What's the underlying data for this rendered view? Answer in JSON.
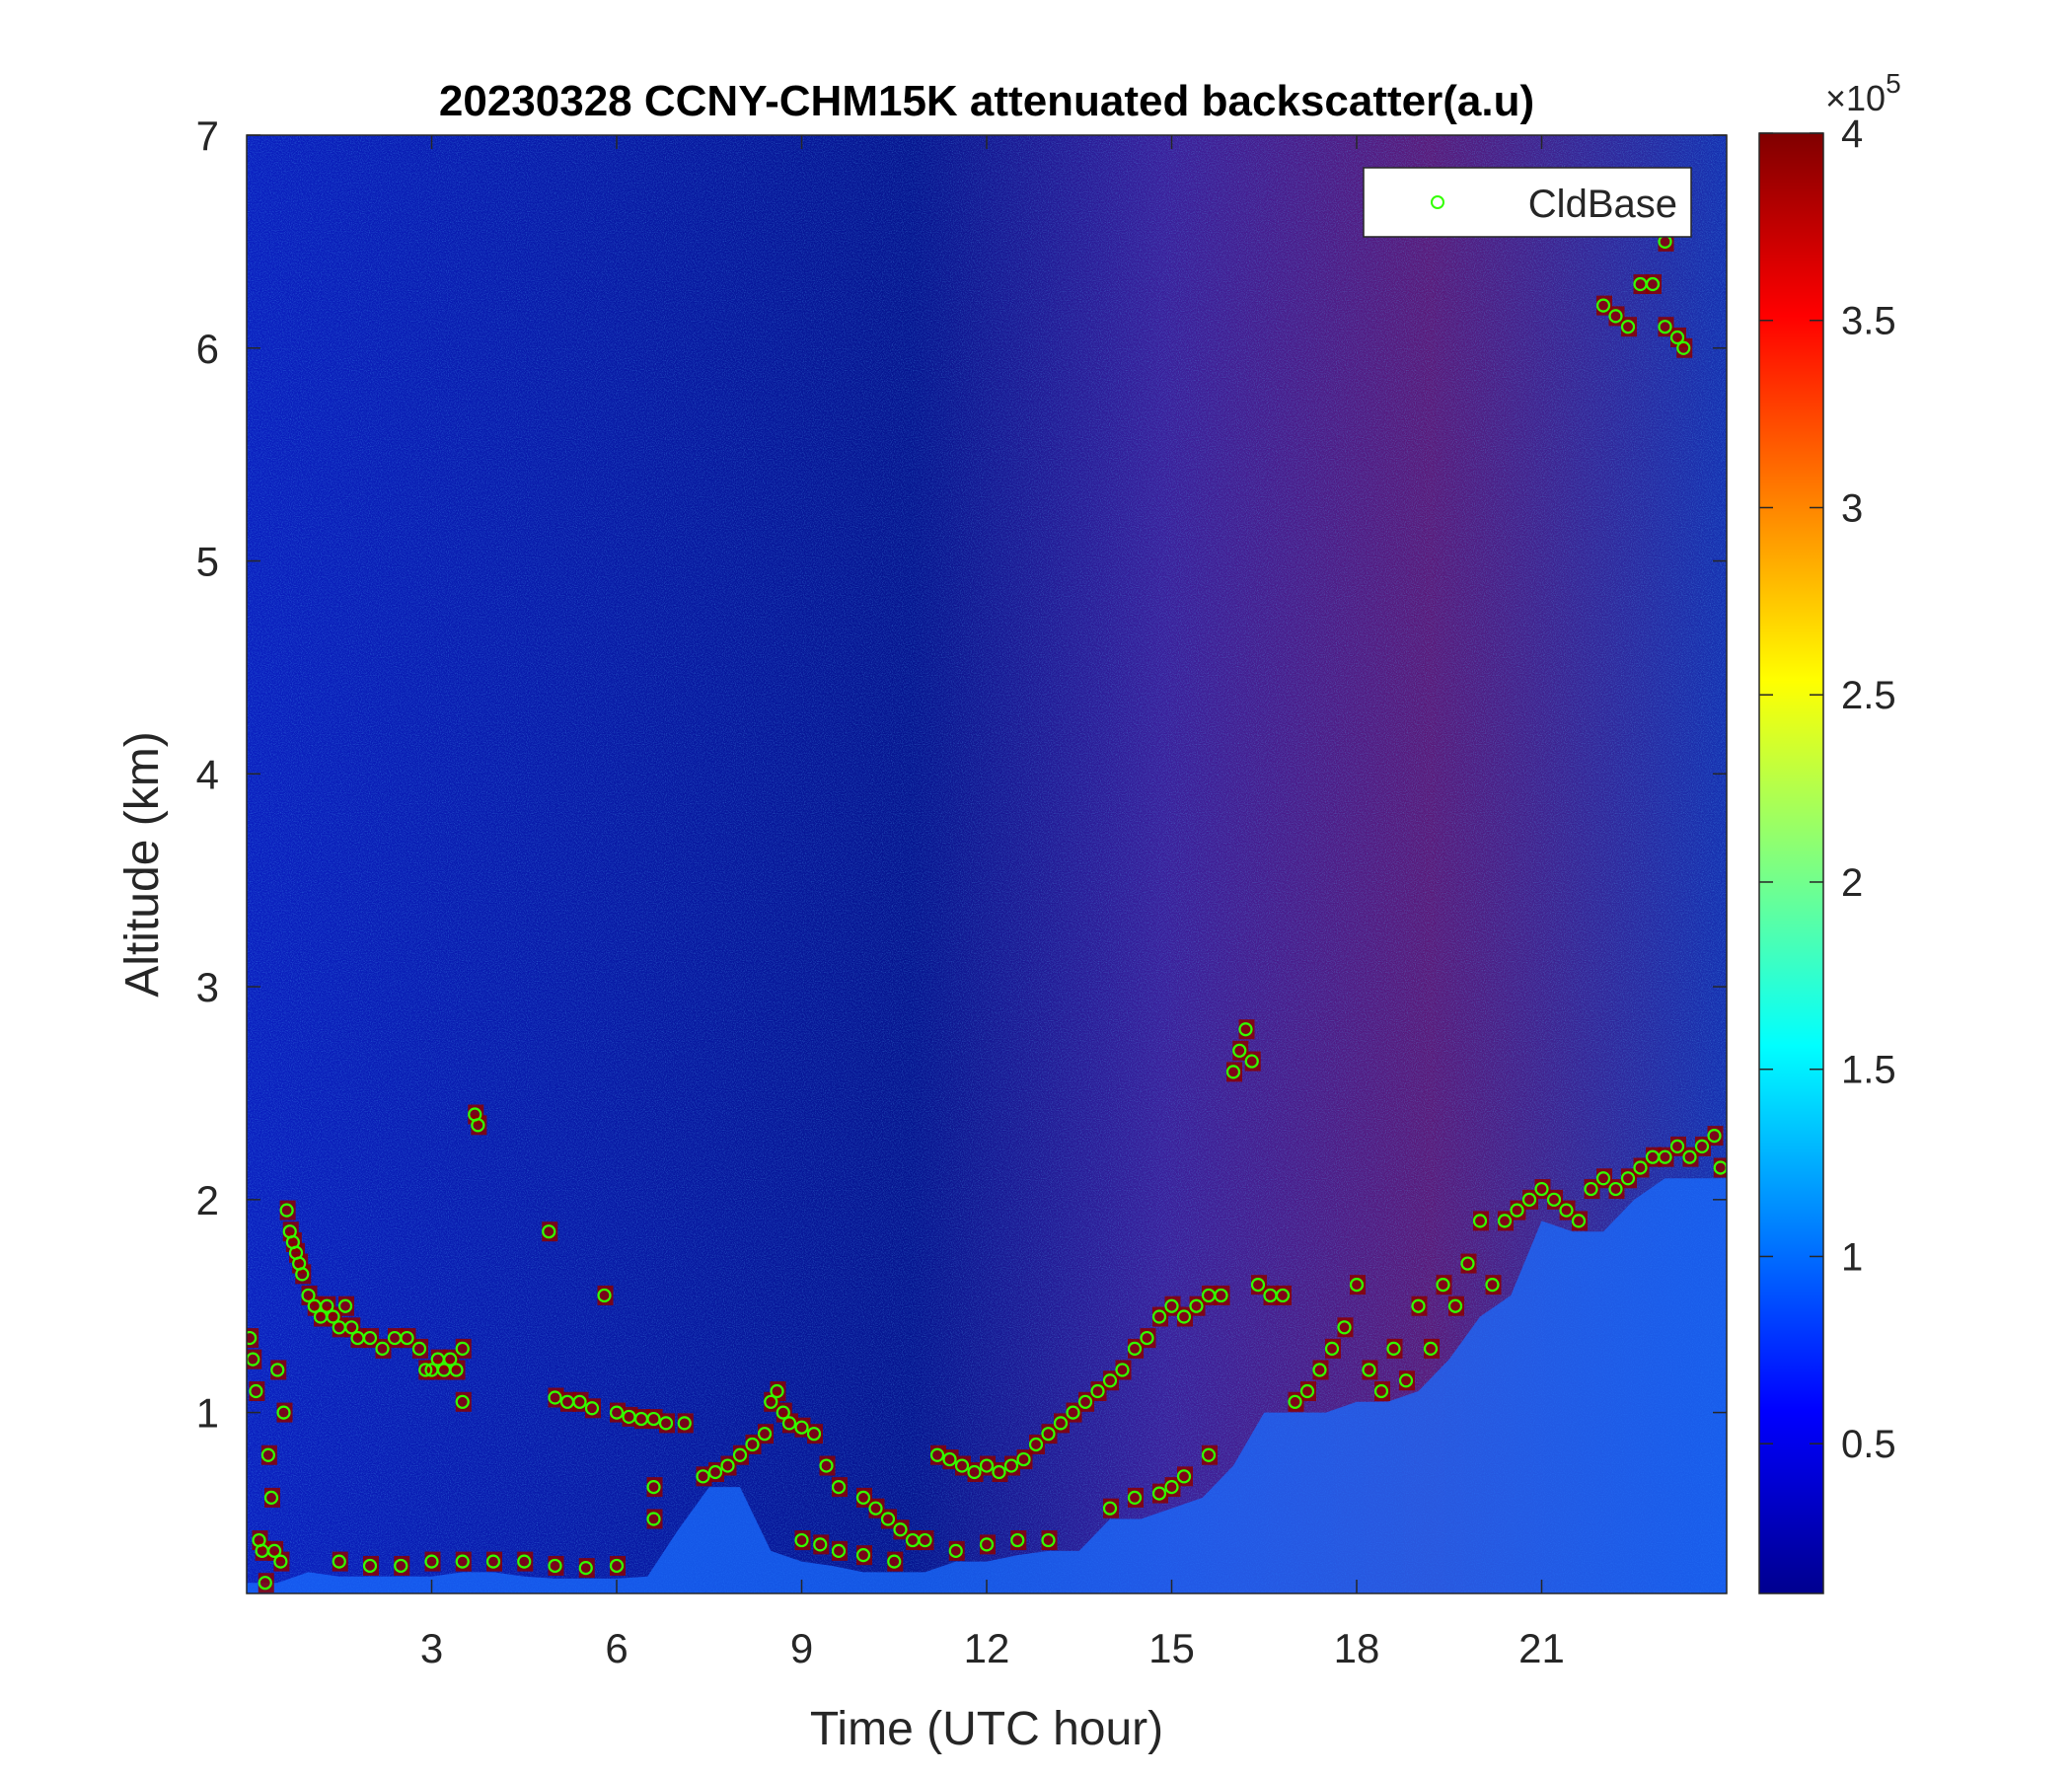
{
  "chart_data": {
    "type": "heatmap",
    "title": "20230328 CCNY-CHM15K attenuated backscatter(a.u)",
    "xlabel": "Time (UTC hour)",
    "ylabel": "Altitude (km)",
    "xlim": [
      0,
      24
    ],
    "ylim": [
      0.15,
      7
    ],
    "xticks": [
      3,
      6,
      9,
      12,
      15,
      18,
      21
    ],
    "yticks": [
      1,
      2,
      3,
      4,
      5,
      6,
      7
    ],
    "colorbar": {
      "colormap": "jet",
      "clim": [
        0.1,
        4
      ],
      "ticks": [
        0.5,
        1,
        1.5,
        2,
        2.5,
        3,
        3.5,
        4
      ],
      "multiplier": "×10",
      "exponent": "5"
    },
    "legend": {
      "location": "top-right",
      "entries": [
        "CldBase"
      ]
    },
    "series": [
      {
        "name": "CldBase",
        "marker": "circle",
        "color": "#33ff00",
        "points": [
          [
            0.05,
            1.35
          ],
          [
            0.1,
            1.25
          ],
          [
            0.15,
            1.1
          ],
          [
            0.2,
            0.4
          ],
          [
            0.25,
            0.35
          ],
          [
            0.3,
            0.2
          ],
          [
            0.35,
            0.8
          ],
          [
            0.4,
            0.6
          ],
          [
            0.45,
            0.35
          ],
          [
            0.5,
            1.2
          ],
          [
            0.55,
            0.3
          ],
          [
            0.6,
            1.0
          ],
          [
            0.65,
            1.95
          ],
          [
            0.7,
            1.85
          ],
          [
            0.75,
            1.8
          ],
          [
            0.8,
            1.75
          ],
          [
            0.85,
            1.7
          ],
          [
            0.9,
            1.65
          ],
          [
            1.0,
            1.55
          ],
          [
            1.1,
            1.5
          ],
          [
            1.2,
            1.45
          ],
          [
            1.3,
            1.5
          ],
          [
            1.4,
            1.45
          ],
          [
            1.5,
            1.4
          ],
          [
            1.6,
            1.5
          ],
          [
            1.7,
            1.4
          ],
          [
            1.8,
            1.35
          ],
          [
            2.0,
            1.35
          ],
          [
            2.2,
            1.3
          ],
          [
            2.4,
            1.35
          ],
          [
            2.6,
            1.35
          ],
          [
            2.8,
            1.3
          ],
          [
            2.9,
            1.2
          ],
          [
            3.0,
            1.2
          ],
          [
            3.1,
            1.25
          ],
          [
            3.2,
            1.2
          ],
          [
            3.3,
            1.25
          ],
          [
            3.4,
            1.2
          ],
          [
            3.5,
            1.3
          ],
          [
            3.5,
            1.05
          ],
          [
            3.7,
            2.4
          ],
          [
            3.75,
            2.35
          ],
          [
            4.9,
            1.85
          ],
          [
            5.0,
            1.07
          ],
          [
            5.2,
            1.05
          ],
          [
            5.4,
            1.05
          ],
          [
            5.6,
            1.02
          ],
          [
            5.8,
            1.55
          ],
          [
            6.0,
            1.0
          ],
          [
            6.2,
            0.98
          ],
          [
            6.4,
            0.97
          ],
          [
            6.6,
            0.97
          ],
          [
            6.8,
            0.95
          ],
          [
            6.6,
            0.65
          ],
          [
            6.6,
            0.5
          ],
          [
            7.1,
            0.95
          ],
          [
            7.4,
            0.7
          ],
          [
            7.6,
            0.72
          ],
          [
            7.8,
            0.75
          ],
          [
            8.0,
            0.8
          ],
          [
            8.2,
            0.85
          ],
          [
            8.4,
            0.9
          ],
          [
            8.5,
            1.05
          ],
          [
            8.6,
            1.1
          ],
          [
            8.7,
            1.0
          ],
          [
            8.8,
            0.95
          ],
          [
            9.0,
            0.93
          ],
          [
            9.2,
            0.9
          ],
          [
            9.4,
            0.75
          ],
          [
            9.6,
            0.65
          ],
          [
            10.0,
            0.6
          ],
          [
            10.2,
            0.55
          ],
          [
            10.4,
            0.5
          ],
          [
            10.6,
            0.45
          ],
          [
            10.8,
            0.4
          ],
          [
            11.0,
            0.4
          ],
          [
            11.2,
            0.8
          ],
          [
            11.4,
            0.78
          ],
          [
            11.6,
            0.75
          ],
          [
            11.8,
            0.72
          ],
          [
            12.0,
            0.75
          ],
          [
            12.2,
            0.72
          ],
          [
            12.4,
            0.75
          ],
          [
            12.6,
            0.78
          ],
          [
            12.8,
            0.85
          ],
          [
            13.0,
            0.9
          ],
          [
            13.2,
            0.95
          ],
          [
            13.4,
            1.0
          ],
          [
            13.6,
            1.05
          ],
          [
            13.8,
            1.1
          ],
          [
            14.0,
            1.15
          ],
          [
            14.2,
            1.2
          ],
          [
            14.4,
            1.3
          ],
          [
            14.6,
            1.35
          ],
          [
            14.8,
            1.45
          ],
          [
            15.0,
            1.5
          ],
          [
            15.2,
            1.45
          ],
          [
            15.4,
            1.5
          ],
          [
            15.6,
            1.55
          ],
          [
            15.8,
            1.55
          ],
          [
            14.0,
            0.55
          ],
          [
            14.4,
            0.6
          ],
          [
            14.8,
            0.62
          ],
          [
            15.0,
            0.65
          ],
          [
            15.2,
            0.7
          ],
          [
            15.6,
            0.8
          ],
          [
            16.0,
            2.6
          ],
          [
            16.1,
            2.7
          ],
          [
            16.2,
            2.8
          ],
          [
            16.3,
            2.65
          ],
          [
            16.4,
            1.6
          ],
          [
            16.6,
            1.55
          ],
          [
            16.8,
            1.55
          ],
          [
            17.0,
            1.05
          ],
          [
            17.2,
            1.1
          ],
          [
            17.4,
            1.2
          ],
          [
            17.6,
            1.3
          ],
          [
            17.8,
            1.4
          ],
          [
            18.0,
            1.6
          ],
          [
            18.2,
            1.2
          ],
          [
            18.4,
            1.1
          ],
          [
            18.6,
            1.3
          ],
          [
            18.8,
            1.15
          ],
          [
            19.0,
            1.5
          ],
          [
            19.2,
            1.3
          ],
          [
            19.4,
            1.6
          ],
          [
            19.6,
            1.5
          ],
          [
            19.8,
            1.7
          ],
          [
            20.0,
            1.9
          ],
          [
            20.2,
            1.6
          ],
          [
            20.4,
            1.9
          ],
          [
            20.6,
            1.95
          ],
          [
            20.8,
            2.0
          ],
          [
            21.0,
            2.05
          ],
          [
            21.2,
            2.0
          ],
          [
            21.4,
            1.95
          ],
          [
            21.6,
            1.9
          ],
          [
            21.8,
            2.05
          ],
          [
            22.0,
            2.1
          ],
          [
            22.2,
            2.05
          ],
          [
            22.4,
            2.1
          ],
          [
            22.6,
            2.15
          ],
          [
            22.8,
            2.2
          ],
          [
            23.0,
            2.2
          ],
          [
            23.2,
            2.25
          ],
          [
            23.4,
            2.2
          ],
          [
            23.6,
            2.25
          ],
          [
            23.8,
            2.3
          ],
          [
            23.9,
            2.15
          ],
          [
            1.5,
            0.3
          ],
          [
            2.0,
            0.28
          ],
          [
            2.5,
            0.28
          ],
          [
            3.0,
            0.3
          ],
          [
            3.5,
            0.3
          ],
          [
            4.0,
            0.3
          ],
          [
            4.5,
            0.3
          ],
          [
            5.0,
            0.28
          ],
          [
            5.5,
            0.27
          ],
          [
            6.0,
            0.28
          ],
          [
            9.0,
            0.4
          ],
          [
            9.3,
            0.38
          ],
          [
            9.6,
            0.35
          ],
          [
            10.0,
            0.33
          ],
          [
            10.5,
            0.3
          ],
          [
            11.5,
            0.35
          ],
          [
            12.0,
            0.38
          ],
          [
            12.5,
            0.4
          ],
          [
            13.0,
            0.4
          ],
          [
            22.0,
            6.2
          ],
          [
            22.2,
            6.15
          ],
          [
            22.4,
            6.1
          ],
          [
            22.6,
            6.3
          ],
          [
            22.8,
            6.3
          ],
          [
            23.0,
            6.1
          ],
          [
            23.2,
            6.05
          ],
          [
            23.3,
            6.0
          ],
          [
            23.0,
            6.5
          ]
        ]
      }
    ]
  }
}
